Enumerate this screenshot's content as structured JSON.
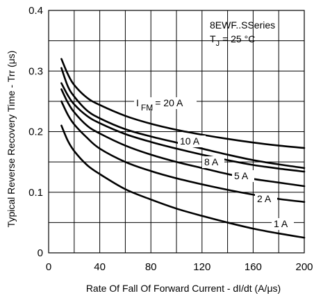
{
  "chart_data": {
    "type": "line",
    "xlabel": "Rate Of Fall Of Forward Current - dI/dt (A/μs)",
    "ylabel": "Typical Reverse Recovery Time - Trr (μs)",
    "xlim": [
      0,
      200
    ],
    "ylim": [
      0,
      0.4
    ],
    "x_ticks": [
      "0",
      "40",
      "80",
      "120",
      "160",
      "200"
    ],
    "y_ticks": [
      "0",
      "0.1",
      "0.2",
      "0.3",
      "0.4"
    ],
    "grid": true,
    "annotation": {
      "series": "8EWF..SSeries",
      "condition_main": "T",
      "condition_sub": "J",
      "condition_value": "= 25 °C"
    },
    "series": [
      {
        "name_main": "I",
        "name_sub": "FM",
        "name_value": "= 20 A",
        "x": [
          10,
          15,
          20,
          30,
          40,
          60,
          80,
          100,
          120,
          140,
          160,
          180,
          200
        ],
        "y": [
          0.32,
          0.295,
          0.277,
          0.256,
          0.244,
          0.226,
          0.213,
          0.203,
          0.195,
          0.188,
          0.182,
          0.177,
          0.173
        ]
      },
      {
        "name": "10 A",
        "x": [
          10,
          15,
          20,
          30,
          40,
          60,
          80,
          100,
          120,
          140,
          160,
          180,
          200
        ],
        "y": [
          0.305,
          0.275,
          0.258,
          0.235,
          0.222,
          0.204,
          0.192,
          0.182,
          0.172,
          0.162,
          0.153,
          0.146,
          0.14
        ]
      },
      {
        "name": "8 A",
        "x": [
          10,
          15,
          20,
          30,
          40,
          60,
          80,
          100,
          120,
          140,
          160,
          180,
          200
        ],
        "y": [
          0.28,
          0.26,
          0.245,
          0.226,
          0.214,
          0.196,
          0.183,
          0.172,
          0.162,
          0.153,
          0.145,
          0.139,
          0.134
        ]
      },
      {
        "name": "5 A",
        "x": [
          10,
          15,
          20,
          30,
          40,
          60,
          80,
          100,
          120,
          140,
          160,
          180,
          200
        ],
        "y": [
          0.27,
          0.248,
          0.232,
          0.21,
          0.197,
          0.177,
          0.162,
          0.15,
          0.14,
          0.13,
          0.122,
          0.116,
          0.11
        ]
      },
      {
        "name": "2 A",
        "x": [
          10,
          15,
          20,
          30,
          40,
          60,
          80,
          100,
          120,
          140,
          160,
          180,
          200
        ],
        "y": [
          0.25,
          0.228,
          0.212,
          0.19,
          0.172,
          0.15,
          0.135,
          0.123,
          0.113,
          0.104,
          0.096,
          0.089,
          0.084
        ]
      },
      {
        "name": "1 A",
        "x": [
          10,
          15,
          20,
          30,
          40,
          60,
          80,
          100,
          120,
          140,
          160,
          180,
          200
        ],
        "y": [
          0.21,
          0.185,
          0.168,
          0.145,
          0.13,
          0.105,
          0.088,
          0.073,
          0.061,
          0.05,
          0.04,
          0.032,
          0.025
        ]
      }
    ]
  }
}
